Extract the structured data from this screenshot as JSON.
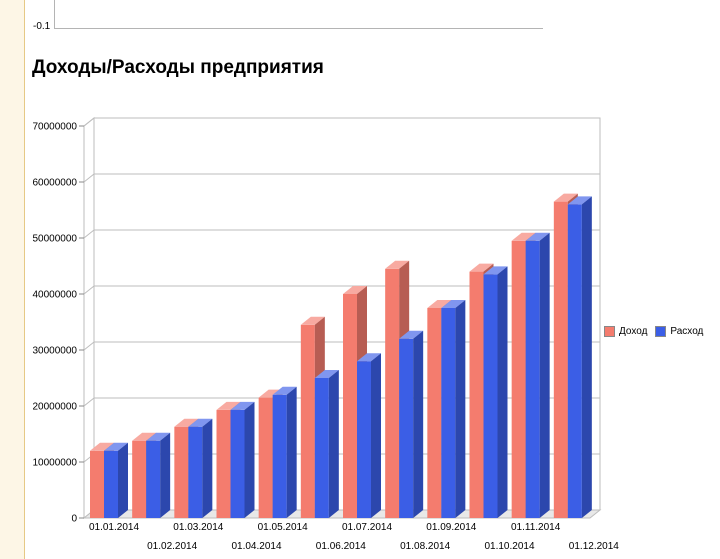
{
  "top_chart": {
    "tick_label": "-0.1"
  },
  "chart_data": {
    "type": "bar",
    "title": "Доходы/Расходы предприятия",
    "xlabel": "",
    "ylabel": "",
    "ylim": [
      0,
      70000000
    ],
    "yticks": [
      "0",
      "10000000",
      "20000000",
      "30000000",
      "40000000",
      "50000000",
      "60000000",
      "70000000"
    ],
    "categories": [
      "01.01.2014",
      "01.02.2014",
      "01.03.2014",
      "01.04.2014",
      "01.05.2014",
      "01.06.2014",
      "01.07.2014",
      "01.08.2014",
      "01.09.2014",
      "01.10.2014",
      "01.11.2014",
      "01.12.2014"
    ],
    "series": [
      {
        "name": "Доход",
        "color": "#f47c6e",
        "values": [
          12000000,
          13800000,
          16300000,
          19300000,
          21500000,
          34500000,
          40000000,
          44500000,
          37500000,
          44000000,
          49500000,
          56500000
        ]
      },
      {
        "name": "Расход",
        "color": "#3b5ee6",
        "values": [
          12000000,
          13800000,
          16300000,
          19300000,
          22000000,
          25000000,
          28000000,
          32000000,
          37500000,
          43500000,
          49500000,
          56000000
        ]
      }
    ],
    "grid": true,
    "legend": "right"
  }
}
